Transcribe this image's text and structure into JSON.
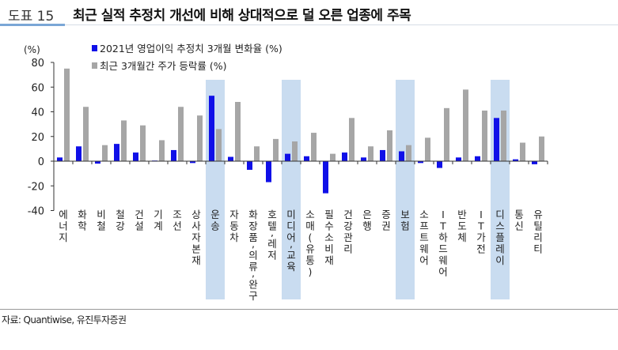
{
  "header": {
    "figure_number": "도표 15",
    "title": "최근 실적 추정치 개선에 비해 상대적으로 덜 오른 업종에 주목"
  },
  "footer": {
    "source": "자료: Quantiwise, 유진투자증권"
  },
  "chart_data": {
    "type": "bar",
    "title": "",
    "ylabel": "(%)",
    "xlabel": "",
    "ylim": [
      -40,
      80
    ],
    "yticks": [
      -40,
      -20,
      0,
      20,
      40,
      60,
      80
    ],
    "grid": false,
    "legend_position": "top-left",
    "categories": [
      "에너지",
      "화학",
      "비철",
      "철강",
      "건설",
      "기계",
      "조선",
      "상사자본재",
      "운송",
      "자동차",
      "화장품,의류,완구",
      "호텔,레저",
      "미디어,교육",
      "소매(유통)",
      "필수소비재",
      "건강관리",
      "은행",
      "증권",
      "보험",
      "소프트웨어",
      "IT하드웨어",
      "반도체",
      "IT가전",
      "디스플레이",
      "통신",
      "유틸리티"
    ],
    "highlighted_categories": [
      "운송",
      "미디어,교육",
      "보험",
      "디스플레이"
    ],
    "series": [
      {
        "name": "2021년 영업이익 추정치 3개월 변화율 (%)",
        "color": "#1010e8",
        "values": [
          3,
          12,
          -2,
          14,
          7,
          0.5,
          9,
          -1.5,
          53,
          3.5,
          -7,
          -17,
          6,
          4,
          -26,
          7,
          3,
          9,
          8,
          -1.5,
          -5.5,
          3,
          4,
          35,
          1.5,
          -2.5
        ]
      },
      {
        "name": "최근 3개월간 주가 등락률 (%)",
        "color": "#a6a6a6",
        "values": [
          75,
          44,
          13,
          33,
          29,
          17,
          44,
          37,
          26,
          48,
          12,
          18,
          16,
          23,
          6,
          35,
          12,
          25,
          13,
          19,
          43,
          58,
          41,
          41,
          15,
          20
        ]
      }
    ],
    "highlight_color": "#c9dcf0"
  }
}
